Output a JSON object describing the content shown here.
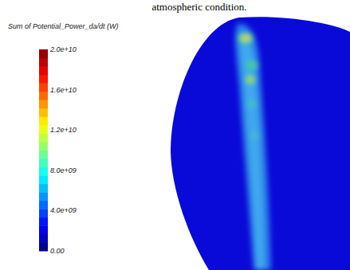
{
  "chart_data": {
    "type": "contour",
    "caption": "atmospheric condition.",
    "title": "Sum of Potential_Power_da/dt (W)",
    "colorbar": {
      "range": [
        0,
        20000000000
      ],
      "ticks": [
        {
          "value": 0,
          "label": "0.00"
        },
        {
          "value": 4000000000,
          "label": "4.0e+09"
        },
        {
          "value": 8000000000,
          "label": "8.0e+09"
        },
        {
          "value": 12000000000,
          "label": "1.2e+10"
        },
        {
          "value": 16000000000,
          "label": "1.6e+10"
        },
        {
          "value": 20000000000,
          "label": "2.0e+10"
        }
      ]
    }
  }
}
